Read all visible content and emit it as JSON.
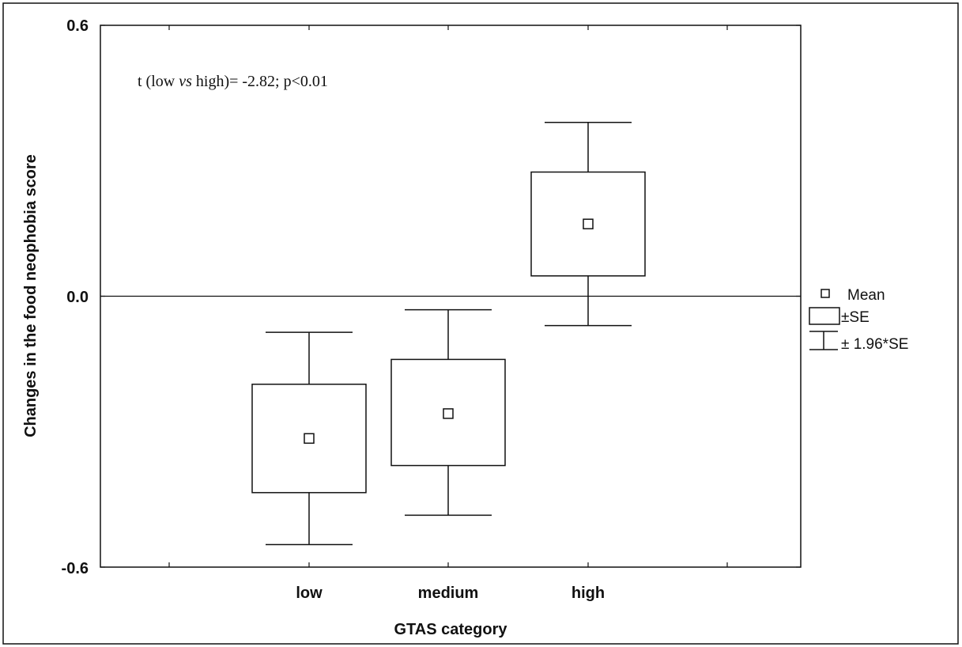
{
  "chart_data": {
    "type": "box",
    "xlabel": "GTAS category",
    "ylabel": "Changes in the food neophobia score",
    "ylim": [
      -0.6,
      0.6
    ],
    "yticks": [
      "0.6",
      "0.0",
      "-0.6"
    ],
    "categories": [
      "low",
      "medium",
      "high"
    ],
    "series": [
      {
        "category": "low",
        "mean": -0.315,
        "se_low": -0.435,
        "se_high": -0.195,
        "ci_low": -0.55,
        "ci_high": -0.08
      },
      {
        "category": "medium",
        "mean": -0.26,
        "se_low": -0.375,
        "se_high": -0.14,
        "ci_low": -0.485,
        "ci_high": -0.03
      },
      {
        "category": "high",
        "mean": 0.16,
        "se_low": 0.045,
        "se_high": 0.275,
        "ci_low": -0.065,
        "ci_high": 0.385
      }
    ],
    "reference_line": 0.0,
    "annotation": {
      "prefix": "t (low ",
      "italic": "vs",
      "suffix": " high)= -2.82; p<0.01"
    },
    "legend": {
      "position": "right",
      "items": [
        {
          "symbol": "mean-marker",
          "label": "Mean"
        },
        {
          "symbol": "se-box",
          "label": "±SE"
        },
        {
          "symbol": "ci-whisker",
          "label": "± 1.96*SE"
        }
      ]
    },
    "colors": {
      "stroke": "#111111",
      "background": "#ffffff"
    }
  }
}
